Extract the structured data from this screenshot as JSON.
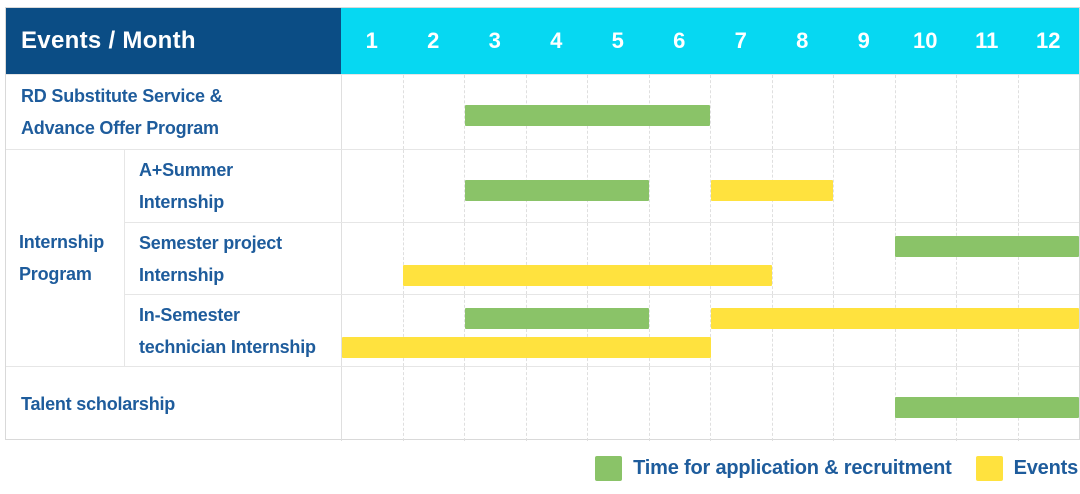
{
  "colors": {
    "header_bg": "#0B4D85",
    "months_bg": "#06D8F2",
    "header_text": "#FFFFFF",
    "label_text": "#1E5C9C",
    "green": "#8AC368",
    "yellow": "#FFE23E",
    "grid_line": "#DFDFDF",
    "row_line": "#E6E6E6",
    "table_border": "#D9D9D9"
  },
  "table": {
    "header": {
      "title": "Events / Month",
      "months": [
        "1",
        "2",
        "3",
        "4",
        "5",
        "6",
        "7",
        "8",
        "9",
        "10",
        "11",
        "12"
      ]
    },
    "rows": [
      {
        "id": "rd-substitute-service",
        "group": null,
        "label_lines": [
          "RD Substitute Service &",
          "Advance Offer Program"
        ],
        "bars": [
          {
            "color": "green",
            "start_month": 3,
            "end_month": 6,
            "lane": "middle"
          }
        ]
      },
      {
        "id": "a-plus-summer-internship",
        "group": "internship-program",
        "label_lines": [
          "A+Summer",
          "Internship"
        ],
        "bars": [
          {
            "color": "green",
            "start_month": 3,
            "end_month": 5,
            "lane": "middle"
          },
          {
            "color": "yellow",
            "start_month": 7,
            "end_month": 8,
            "lane": "middle"
          }
        ]
      },
      {
        "id": "semester-project-internship",
        "group": "internship-program",
        "label_lines": [
          "Semester project",
          "Internship"
        ],
        "bars": [
          {
            "color": "green",
            "start_month": 10,
            "end_month": 12,
            "lane": "top"
          },
          {
            "color": "yellow",
            "start_month": 2,
            "end_month": 7,
            "lane": "bottom"
          }
        ]
      },
      {
        "id": "in-semester-technician-internship",
        "group": "internship-program",
        "label_lines": [
          "In-Semester",
          "technician Internship"
        ],
        "bars": [
          {
            "color": "green",
            "start_month": 3,
            "end_month": 5,
            "lane": "top"
          },
          {
            "color": "yellow",
            "start_month": 7,
            "end_month": 12,
            "lane": "top"
          },
          {
            "color": "yellow",
            "start_month": 1,
            "end_month": 6,
            "lane": "bottom"
          }
        ]
      },
      {
        "id": "talent-scholarship",
        "group": null,
        "label_lines": [
          "Talent scholarship"
        ],
        "bars": [
          {
            "color": "green",
            "start_month": 10,
            "end_month": 12,
            "lane": "middle"
          }
        ]
      }
    ]
  },
  "groups": {
    "internship-program": {
      "label_lines": [
        "Internship",
        "Program"
      ]
    }
  },
  "legend": {
    "items": [
      {
        "color": "green",
        "label": "Time for application & recruitment"
      },
      {
        "color": "yellow",
        "label": "Events"
      }
    ]
  },
  "chart_data": {
    "type": "gantt",
    "title": "Events / Month",
    "x_axis": {
      "unit": "month",
      "ticks": [
        1,
        2,
        3,
        4,
        5,
        6,
        7,
        8,
        9,
        10,
        11,
        12
      ],
      "range": [
        1,
        12
      ]
    },
    "grid": true,
    "legend_position": "bottom-right",
    "legend": [
      "Time for application & recruitment",
      "Events"
    ],
    "rows": [
      {
        "name": "RD Substitute Service & Advance Offer Program",
        "group": null,
        "bars": [
          {
            "series": "Time for application & recruitment",
            "color": "green",
            "months": [
              3,
              6
            ]
          }
        ]
      },
      {
        "name": "A+Summer Internship",
        "group": "Internship Program",
        "bars": [
          {
            "series": "Time for application & recruitment",
            "color": "green",
            "months": [
              3,
              5
            ]
          },
          {
            "series": "Events",
            "color": "yellow",
            "months": [
              7,
              8
            ]
          }
        ]
      },
      {
        "name": "Semester project Internship",
        "group": "Internship Program",
        "bars": [
          {
            "series": "Time for application & recruitment",
            "color": "green",
            "months": [
              10,
              12
            ]
          },
          {
            "series": "Events",
            "color": "yellow",
            "months": [
              2,
              7
            ]
          }
        ]
      },
      {
        "name": "In-Semester technician Internship",
        "group": "Internship Program",
        "bars": [
          {
            "series": "Time for application & recruitment",
            "color": "green",
            "months": [
              3,
              5
            ]
          },
          {
            "series": "Events",
            "color": "yellow",
            "months": [
              7,
              12
            ]
          },
          {
            "series": "Events",
            "color": "yellow",
            "months": [
              1,
              6
            ]
          }
        ]
      },
      {
        "name": "Talent scholarship",
        "group": null,
        "bars": [
          {
            "series": "Time for application & recruitment",
            "color": "green",
            "months": [
              10,
              12
            ]
          }
        ]
      }
    ]
  }
}
